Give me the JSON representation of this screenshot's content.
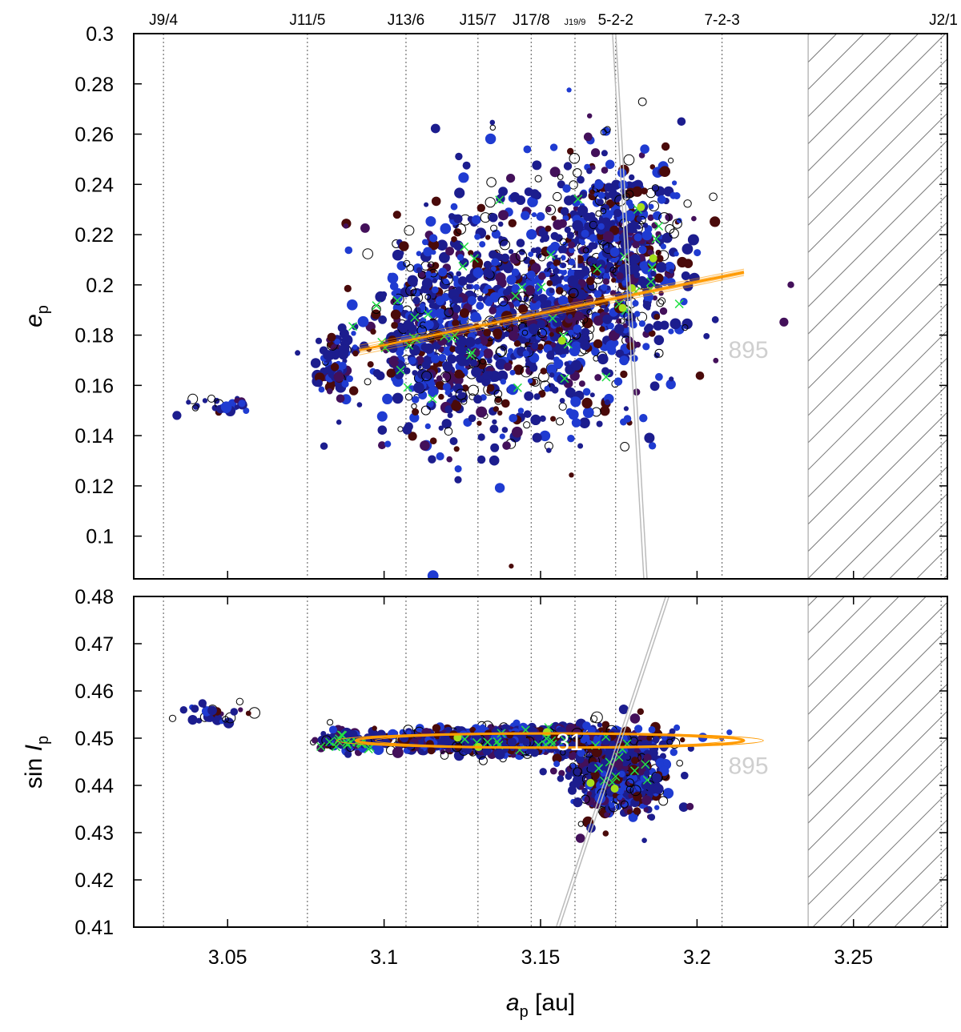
{
  "chart_data": [
    {
      "type": "scatter",
      "panel": "top",
      "ylabel_main": "e",
      "ylabel_sub": "p",
      "xlim": [
        3.02,
        3.28
      ],
      "ylim": [
        0.083,
        0.3
      ],
      "yticks": [
        0.1,
        0.12,
        0.14,
        0.16,
        0.18,
        0.2,
        0.22,
        0.24,
        0.26,
        0.28,
        0.3
      ],
      "ytick_labels": [
        "0.1",
        "0.12",
        "0.14",
        "0.16",
        "0.18",
        "0.2",
        "0.22",
        "0.24",
        "0.26",
        "0.28",
        "0.3"
      ],
      "annotations": [
        {
          "text": "31",
          "x": 3.155,
          "y": 0.206,
          "color": "white"
        },
        {
          "text": "895",
          "x": 3.21,
          "y": 0.171,
          "color": "grey"
        }
      ],
      "fit_line": {
        "x": [
          3.092,
          3.215
        ],
        "y": [
          0.174,
          0.205
        ]
      },
      "clusters": [
        {
          "cx": 3.148,
          "cy": 0.188,
          "sx": 0.038,
          "sy": 0.045,
          "n": 950
        },
        {
          "cx": 3.175,
          "cy": 0.215,
          "sx": 0.02,
          "sy": 0.035,
          "n": 450
        },
        {
          "cx": 3.115,
          "cy": 0.178,
          "sx": 0.018,
          "sy": 0.03,
          "n": 350
        },
        {
          "cx": 3.085,
          "cy": 0.168,
          "sx": 0.005,
          "sy": 0.012,
          "n": 80
        },
        {
          "cx": 3.048,
          "cy": 0.152,
          "sx": 0.01,
          "sy": 0.004,
          "n": 30
        }
      ],
      "gap": [
        0.112,
        0.15
      ],
      "chaotic_line": [
        [
          3.173,
          0.3
        ],
        [
          3.183,
          0.083
        ]
      ]
    },
    {
      "type": "scatter",
      "panel": "bottom",
      "ylabel_main": "sin I",
      "ylabel_sub": "p",
      "xlabel_main": "a",
      "xlabel_sub": "p",
      "xlabel_unit": " [au]",
      "xlim": [
        3.02,
        3.28
      ],
      "ylim": [
        0.41,
        0.48
      ],
      "yticks": [
        0.41,
        0.42,
        0.43,
        0.44,
        0.45,
        0.46,
        0.47,
        0.48
      ],
      "ytick_labels": [
        "0.41",
        "0.42",
        "0.43",
        "0.44",
        "0.45",
        "0.46",
        "0.47",
        "0.48"
      ],
      "xticks": [
        3.05,
        3.1,
        3.15,
        3.2,
        3.25
      ],
      "xtick_labels": [
        "3.05",
        "3.1",
        "3.15",
        "3.2",
        "3.25"
      ],
      "annotations": [
        {
          "text": "31",
          "x": 3.155,
          "y": 0.4475,
          "color": "white"
        },
        {
          "text": "895",
          "x": 3.21,
          "y": 0.4425,
          "color": "grey"
        }
      ],
      "ellipse": {
        "cx": 3.153,
        "cy": 0.4495,
        "rx": 0.062,
        "ry": 0.0015
      },
      "clusters": [
        {
          "cx": 3.145,
          "cy": 0.4495,
          "sx": 0.035,
          "sy": 0.0022,
          "n": 1300
        },
        {
          "cx": 3.175,
          "cy": 0.4425,
          "sx": 0.015,
          "sy": 0.0075,
          "n": 550
        },
        {
          "cx": 3.088,
          "cy": 0.4495,
          "sx": 0.007,
          "sy": 0.002,
          "n": 100
        },
        {
          "cx": 3.045,
          "cy": 0.455,
          "sx": 0.01,
          "sy": 0.0018,
          "n": 30
        }
      ],
      "chaotic_line": [
        [
          3.155,
          0.41
        ],
        [
          3.19,
          0.48
        ]
      ]
    }
  ],
  "resonances": [
    {
      "label": "J9/4",
      "a": 3.0295,
      "size": "normal"
    },
    {
      "label": "J11/5",
      "a": 3.0755,
      "size": "normal"
    },
    {
      "label": "J13/6",
      "a": 3.107,
      "size": "normal"
    },
    {
      "label": "J15/7",
      "a": 3.13,
      "size": "normal"
    },
    {
      "label": "J17/8",
      "a": 3.147,
      "size": "normal"
    },
    {
      "label": "J19/9",
      "a": 3.161,
      "size": "small"
    },
    {
      "label": "5-2-2",
      "a": 3.174,
      "size": "normal"
    },
    {
      "label": "7-2-3",
      "a": 3.208,
      "size": "normal"
    },
    {
      "label": "J2/1",
      "a": 3.278,
      "size": "normal"
    }
  ],
  "hatched_region": {
    "a_from": 3.2355,
    "a_to": 3.28
  },
  "colors": {
    "dark_red": "#4a0a0a",
    "navy": "#1c1d8e",
    "blue": "#1f3bd1",
    "purple": "#43105a",
    "orange": "#ff9a00",
    "green_x": "#22e045",
    "yellow_green": "#a4e01c"
  }
}
